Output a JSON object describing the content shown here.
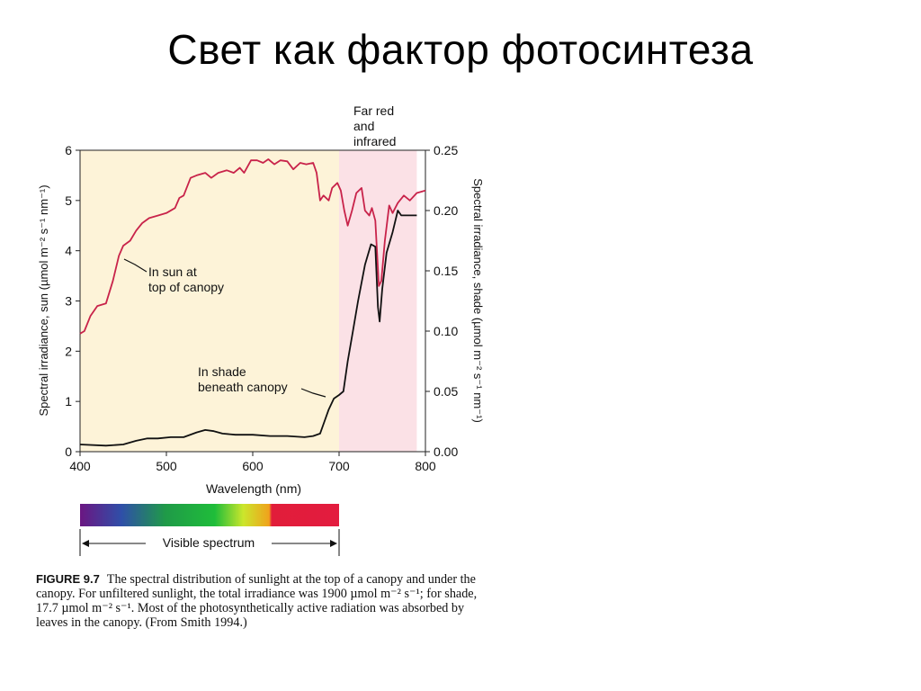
{
  "slide": {
    "title": "Свет как фактор фотосинтеза"
  },
  "chart_data": {
    "type": "line",
    "xlabel": "Wavelength (nm)",
    "ylabel_left": "Spectral irradiance, sun (µmol m⁻² s⁻¹ nm⁻¹)",
    "ylabel_right": "Spectral irradiance, shade (µmol m⁻² s⁻¹ nm⁻¹)",
    "xlim": [
      400,
      800
    ],
    "ylim_left": [
      0,
      6
    ],
    "ylim_right": [
      0,
      0.25
    ],
    "x_ticks": [
      "400",
      "500",
      "600",
      "700",
      "800"
    ],
    "y_ticks_left": [
      "0",
      "1",
      "2",
      "3",
      "4",
      "5",
      "6"
    ],
    "y_ticks_right": [
      "0.00",
      "0.05",
      "0.10",
      "0.15",
      "0.20",
      "0.25"
    ],
    "regions": [
      {
        "from": 400,
        "to": 700,
        "color": "#fdf3d8"
      },
      {
        "from": 700,
        "to": 790,
        "color": "#fbe1e6"
      }
    ],
    "region_label": {
      "line1": "Far red",
      "line2": "and",
      "line3": "infrared"
    },
    "series": [
      {
        "axis": "left",
        "color": "#c8234a",
        "annotation": {
          "line1": "In sun at",
          "line2": "top of canopy"
        },
        "points": [
          [
            400,
            2.35
          ],
          [
            405,
            2.4
          ],
          [
            412,
            2.7
          ],
          [
            420,
            2.9
          ],
          [
            430,
            2.95
          ],
          [
            438,
            3.4
          ],
          [
            445,
            3.9
          ],
          [
            450,
            4.1
          ],
          [
            458,
            4.2
          ],
          [
            465,
            4.4
          ],
          [
            472,
            4.55
          ],
          [
            480,
            4.65
          ],
          [
            490,
            4.7
          ],
          [
            500,
            4.75
          ],
          [
            510,
            4.85
          ],
          [
            515,
            5.05
          ],
          [
            520,
            5.1
          ],
          [
            528,
            5.45
          ],
          [
            535,
            5.5
          ],
          [
            545,
            5.55
          ],
          [
            552,
            5.45
          ],
          [
            560,
            5.55
          ],
          [
            570,
            5.6
          ],
          [
            578,
            5.55
          ],
          [
            585,
            5.65
          ],
          [
            590,
            5.55
          ],
          [
            598,
            5.8
          ],
          [
            605,
            5.8
          ],
          [
            612,
            5.75
          ],
          [
            618,
            5.82
          ],
          [
            625,
            5.72
          ],
          [
            632,
            5.8
          ],
          [
            640,
            5.78
          ],
          [
            647,
            5.62
          ],
          [
            655,
            5.75
          ],
          [
            662,
            5.72
          ],
          [
            670,
            5.75
          ],
          [
            674,
            5.55
          ],
          [
            678,
            5.0
          ],
          [
            682,
            5.1
          ],
          [
            688,
            5.0
          ],
          [
            692,
            5.25
          ],
          [
            698,
            5.35
          ],
          [
            702,
            5.2
          ],
          [
            706,
            4.8
          ],
          [
            710,
            4.5
          ],
          [
            715,
            4.8
          ],
          [
            720,
            5.15
          ],
          [
            726,
            5.25
          ],
          [
            730,
            4.8
          ],
          [
            735,
            4.7
          ],
          [
            738,
            4.85
          ],
          [
            742,
            4.6
          ],
          [
            746,
            3.3
          ],
          [
            749,
            3.4
          ],
          [
            753,
            4.2
          ],
          [
            758,
            4.9
          ],
          [
            762,
            4.75
          ],
          [
            768,
            4.95
          ],
          [
            775,
            5.1
          ],
          [
            782,
            5.0
          ],
          [
            790,
            5.15
          ],
          [
            800,
            5.2
          ]
        ]
      },
      {
        "axis": "right",
        "color": "#111111",
        "annotation": {
          "line1": "In shade",
          "line2": "beneath canopy"
        },
        "points": [
          [
            400,
            0.006
          ],
          [
            430,
            0.005
          ],
          [
            450,
            0.006
          ],
          [
            465,
            0.009
          ],
          [
            478,
            0.011
          ],
          [
            490,
            0.011
          ],
          [
            505,
            0.012
          ],
          [
            520,
            0.012
          ],
          [
            535,
            0.016
          ],
          [
            545,
            0.018
          ],
          [
            555,
            0.017
          ],
          [
            565,
            0.015
          ],
          [
            580,
            0.014
          ],
          [
            600,
            0.014
          ],
          [
            620,
            0.013
          ],
          [
            640,
            0.013
          ],
          [
            660,
            0.012
          ],
          [
            670,
            0.013
          ],
          [
            678,
            0.015
          ],
          [
            683,
            0.025
          ],
          [
            688,
            0.035
          ],
          [
            694,
            0.044
          ],
          [
            700,
            0.047
          ],
          [
            705,
            0.05
          ],
          [
            710,
            0.075
          ],
          [
            716,
            0.1
          ],
          [
            722,
            0.125
          ],
          [
            730,
            0.155
          ],
          [
            737,
            0.172
          ],
          [
            742,
            0.17
          ],
          [
            745,
            0.12
          ],
          [
            747,
            0.108
          ],
          [
            750,
            0.135
          ],
          [
            755,
            0.165
          ],
          [
            762,
            0.182
          ],
          [
            768,
            0.2
          ],
          [
            772,
            0.196
          ],
          [
            780,
            0.196
          ],
          [
            790,
            0.196
          ]
        ]
      }
    ]
  },
  "spectrum_bar": {
    "label": "Visible spectrum",
    "colors": [
      "#6b1682",
      "#2f4fa8",
      "#1f9a48",
      "#1fbd3a",
      "#cbe62c",
      "#f0a21c",
      "#e11d3a",
      "#e31c3f"
    ]
  },
  "caption": {
    "label": "FIGURE 9.7",
    "text": "The spectral distribution of sunlight at the top of a canopy and under the canopy. For unfiltered sunlight, the total irradiance was 1900 µmol m⁻² s⁻¹; for shade, 17.7 µmol m⁻² s⁻¹. Most of the photosynthetically active radiation was absorbed by leaves in the canopy. (From Smith 1994.)"
  }
}
